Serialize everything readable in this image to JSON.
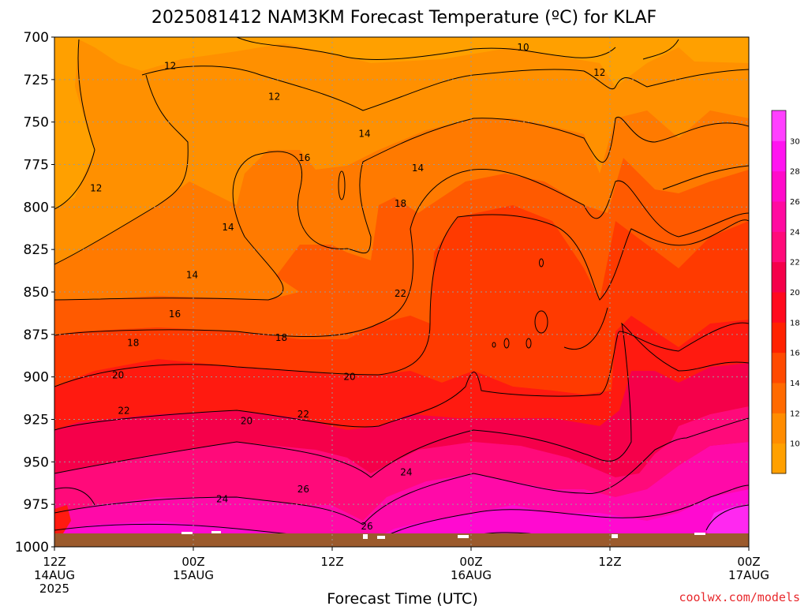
{
  "chart_data": {
    "type": "filled-contour",
    "title": "2025081412 NAM3KM Forecast Temperature (ºC) for KLAF",
    "xlabel": "Forecast Time (UTC)",
    "ylabel": "",
    "y_ticks": [
      "700",
      "725",
      "750",
      "775",
      "800",
      "825",
      "850",
      "875",
      "900",
      "925",
      "950",
      "975",
      "1000"
    ],
    "y_range": [
      700,
      1000
    ],
    "x_ticks": [
      {
        "line1": "12Z",
        "line2": "14AUG",
        "line3": "2025"
      },
      {
        "line1": "00Z",
        "line2": "15AUG",
        "line3": ""
      },
      {
        "line1": "12Z",
        "line2": "",
        "line3": ""
      },
      {
        "line1": "00Z",
        "line2": "16AUG",
        "line3": ""
      },
      {
        "line1": "12Z",
        "line2": "",
        "line3": ""
      },
      {
        "line1": "00Z",
        "line2": "17AUG",
        "line3": ""
      }
    ],
    "grid": true,
    "colorbar": {
      "levels": [
        "10",
        "12",
        "14",
        "16",
        "18",
        "20",
        "22",
        "24",
        "26",
        "28",
        "30"
      ],
      "colors": [
        "#FFA000",
        "#FF8C00",
        "#FF6A00",
        "#FF4A00",
        "#FF2200",
        "#FF0A1E",
        "#F5004A",
        "#FF0A7A",
        "#FF0AA0",
        "#FF0ACA",
        "#FF14F0",
        "#FF40FF"
      ]
    },
    "contour_labels": [
      {
        "text": "10",
        "x_h": 40.5,
        "p": 706
      },
      {
        "text": "12",
        "x_h": 10.0,
        "p": 717
      },
      {
        "text": "12",
        "x_h": 19.0,
        "p": 735
      },
      {
        "text": "12",
        "x_h": 3.6,
        "p": 789
      },
      {
        "text": "12",
        "x_h": 47.1,
        "p": 721
      },
      {
        "text": "14",
        "x_h": 26.8,
        "p": 757
      },
      {
        "text": "14",
        "x_h": 15.0,
        "p": 812
      },
      {
        "text": "14",
        "x_h": 11.9,
        "p": 840
      },
      {
        "text": "14",
        "x_h": 31.4,
        "p": 777
      },
      {
        "text": "16",
        "x_h": 21.6,
        "p": 771
      },
      {
        "text": "16",
        "x_h": 10.4,
        "p": 863
      },
      {
        "text": "18",
        "x_h": 6.8,
        "p": 880
      },
      {
        "text": "18",
        "x_h": 19.6,
        "p": 877
      },
      {
        "text": "18",
        "x_h": 29.9,
        "p": 798
      },
      {
        "text": "20",
        "x_h": 5.5,
        "p": 899
      },
      {
        "text": "20",
        "x_h": 16.6,
        "p": 926
      },
      {
        "text": "20",
        "x_h": 25.5,
        "p": 900
      },
      {
        "text": "22",
        "x_h": 6.0,
        "p": 920
      },
      {
        "text": "22",
        "x_h": 21.5,
        "p": 922
      },
      {
        "text": "22",
        "x_h": 29.9,
        "p": 851
      },
      {
        "text": "24",
        "x_h": 14.5,
        "p": 972
      },
      {
        "text": "24",
        "x_h": 30.4,
        "p": 956
      },
      {
        "text": "26",
        "x_h": 21.5,
        "p": 966
      },
      {
        "text": "26",
        "x_h": 27.0,
        "p": 988
      }
    ]
  },
  "credit": "coolwx.com/models",
  "colors": {
    "terrain": "#9B5A2C",
    "grid": "#9a9a9a",
    "frame": "#000000"
  }
}
